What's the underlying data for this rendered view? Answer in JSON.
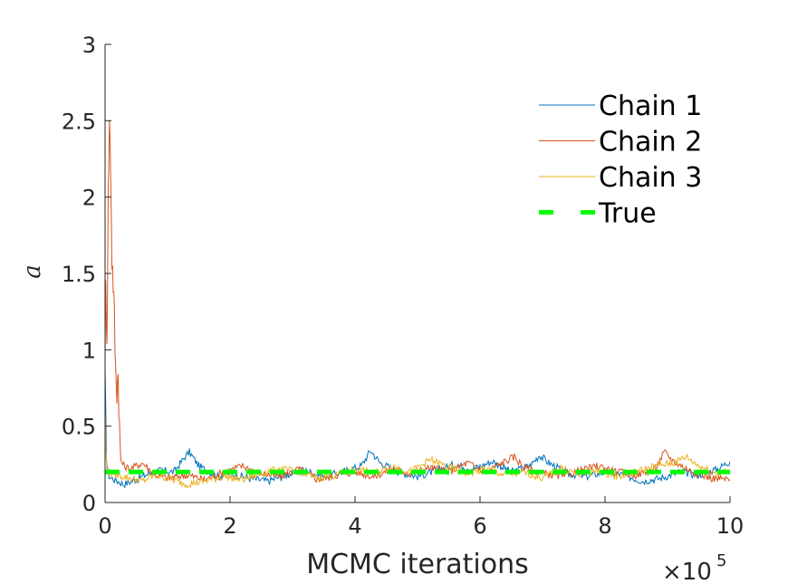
{
  "chart_data": {
    "type": "line",
    "title": "",
    "xlabel": "MCMC iterations",
    "ylabel": "a",
    "x_multiplier": {
      "base": "×10",
      "exponent": "5"
    },
    "xlim": [
      0,
      10
    ],
    "ylim": [
      0,
      3
    ],
    "x_ticks": [
      "0",
      "2",
      "4",
      "6",
      "8",
      "10"
    ],
    "y_ticks": [
      "0",
      "0.5",
      "1",
      "1.5",
      "2",
      "2.5",
      "3"
    ],
    "grid": false,
    "legend_position": "top-right",
    "series": [
      {
        "name": "Chain 1",
        "color": "#0072BD",
        "style": "solid",
        "x": [
          0,
          0.02,
          0.05,
          0.1,
          0.2,
          0.3,
          0.5,
          0.7,
          0.9,
          1.1,
          1.3,
          1.35,
          1.5,
          1.8,
          2.0,
          2.3,
          2.6,
          2.9,
          3.2,
          3.5,
          3.8,
          4.1,
          4.25,
          4.4,
          4.7,
          5.0,
          5.3,
          5.6,
          5.9,
          6.2,
          6.5,
          6.8,
          6.95,
          7.1,
          7.4,
          7.7,
          8.0,
          8.3,
          8.6,
          8.9,
          9.2,
          9.5,
          9.8,
          10.0
        ],
        "y": [
          0.78,
          0.3,
          0.18,
          0.16,
          0.14,
          0.12,
          0.15,
          0.19,
          0.21,
          0.2,
          0.31,
          0.33,
          0.24,
          0.17,
          0.19,
          0.16,
          0.14,
          0.18,
          0.21,
          0.17,
          0.2,
          0.24,
          0.34,
          0.26,
          0.2,
          0.17,
          0.21,
          0.25,
          0.22,
          0.27,
          0.2,
          0.24,
          0.31,
          0.26,
          0.19,
          0.17,
          0.2,
          0.18,
          0.14,
          0.16,
          0.2,
          0.18,
          0.22,
          0.27
        ]
      },
      {
        "name": "Chain 2",
        "color": "#D95319",
        "style": "solid",
        "x": [
          0,
          0.01,
          0.03,
          0.05,
          0.07,
          0.09,
          0.11,
          0.13,
          0.15,
          0.17,
          0.19,
          0.21,
          0.23,
          0.25,
          0.3,
          0.4,
          0.6,
          0.8,
          1.0,
          1.3,
          1.6,
          1.9,
          2.2,
          2.5,
          2.8,
          3.1,
          3.4,
          3.7,
          4.0,
          4.3,
          4.6,
          4.9,
          5.2,
          5.5,
          5.8,
          6.1,
          6.4,
          6.55,
          6.7,
          7.0,
          7.3,
          7.6,
          7.9,
          8.2,
          8.5,
          8.8,
          8.95,
          9.1,
          9.4,
          9.7,
          10.0
        ],
        "y": [
          1.0,
          1.4,
          1.1,
          2.0,
          2.5,
          2.2,
          1.6,
          1.45,
          1.2,
          0.85,
          0.75,
          0.85,
          0.5,
          0.28,
          0.24,
          0.22,
          0.26,
          0.18,
          0.16,
          0.18,
          0.15,
          0.2,
          0.24,
          0.19,
          0.17,
          0.22,
          0.15,
          0.18,
          0.2,
          0.17,
          0.22,
          0.19,
          0.23,
          0.2,
          0.26,
          0.2,
          0.27,
          0.3,
          0.23,
          0.19,
          0.17,
          0.21,
          0.24,
          0.2,
          0.18,
          0.22,
          0.33,
          0.27,
          0.2,
          0.16,
          0.15
        ]
      },
      {
        "name": "Chain 3",
        "color": "#EDB120",
        "style": "solid",
        "x": [
          0,
          0.01,
          0.03,
          0.05,
          0.1,
          0.2,
          0.4,
          0.6,
          0.8,
          1.0,
          1.3,
          1.6,
          1.9,
          2.2,
          2.5,
          2.8,
          3.1,
          3.4,
          3.7,
          4.0,
          4.3,
          4.6,
          4.9,
          5.2,
          5.5,
          5.8,
          6.1,
          6.4,
          6.7,
          7.0,
          7.3,
          7.6,
          7.9,
          8.2,
          8.5,
          8.8,
          9.1,
          9.3,
          9.5,
          9.8,
          10.0
        ],
        "y": [
          0.62,
          0.35,
          0.22,
          0.2,
          0.19,
          0.18,
          0.16,
          0.14,
          0.18,
          0.16,
          0.12,
          0.14,
          0.17,
          0.15,
          0.19,
          0.22,
          0.2,
          0.16,
          0.18,
          0.22,
          0.19,
          0.24,
          0.2,
          0.28,
          0.23,
          0.19,
          0.22,
          0.18,
          0.2,
          0.16,
          0.23,
          0.18,
          0.21,
          0.17,
          0.2,
          0.24,
          0.26,
          0.3,
          0.24,
          0.19,
          0.21
        ]
      },
      {
        "name": "True",
        "color": "#00FF00",
        "style": "dashed",
        "x": [
          0,
          10
        ],
        "y": [
          0.2,
          0.2
        ]
      }
    ]
  }
}
